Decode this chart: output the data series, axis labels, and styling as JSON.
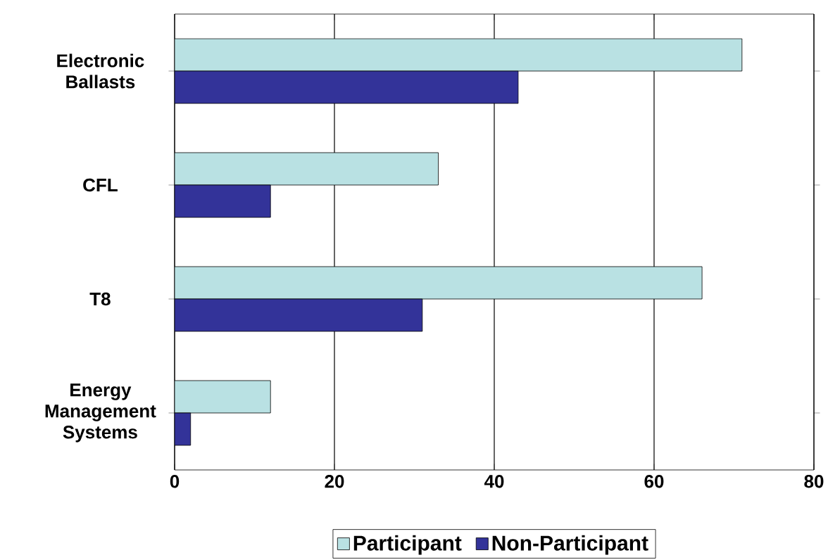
{
  "chart_data": {
    "type": "bar",
    "orientation": "horizontal",
    "categories": [
      "Electronic Ballasts",
      "CFL",
      "T8",
      "Energy Management Systems"
    ],
    "series": [
      {
        "name": "Participant",
        "color": "#b9e1e3",
        "values": [
          71,
          33,
          66,
          12
        ]
      },
      {
        "name": "Non-Participant",
        "color": "#333399",
        "values": [
          43,
          12,
          31,
          2
        ]
      }
    ],
    "xlim": [
      0,
      80
    ],
    "xticks": [
      0,
      20,
      40,
      60,
      80
    ],
    "grid": "x",
    "legend": "bottom"
  }
}
